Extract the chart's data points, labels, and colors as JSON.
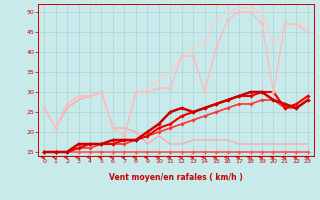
{
  "xlabel": "Vent moyen/en rafales ( km/h )",
  "xlim": [
    -0.5,
    23.5
  ],
  "ylim": [
    14,
    52
  ],
  "yticks": [
    15,
    20,
    25,
    30,
    35,
    40,
    45,
    50
  ],
  "xticks": [
    0,
    1,
    2,
    3,
    4,
    5,
    6,
    7,
    8,
    9,
    10,
    11,
    12,
    13,
    14,
    15,
    16,
    17,
    18,
    19,
    20,
    21,
    22,
    23
  ],
  "bg_color": "#c8eaea",
  "grid_color": "#aad4d4",
  "series": [
    {
      "x": [
        0,
        1,
        2,
        3,
        4,
        5,
        6,
        7,
        8,
        9,
        10,
        11,
        12,
        13,
        14,
        15,
        16,
        17,
        18,
        19,
        20,
        21,
        22,
        23
      ],
      "y": [
        15,
        15,
        15,
        15,
        15,
        15,
        15,
        15,
        15,
        15,
        15,
        15,
        15,
        15,
        15,
        15,
        15,
        15,
        15,
        15,
        15,
        15,
        15,
        15
      ],
      "color": "#ff5555",
      "lw": 1.2,
      "marker": "D",
      "ms": 1.8
    },
    {
      "x": [
        0,
        1,
        2,
        3,
        4,
        5,
        6,
        7,
        8,
        9,
        10,
        11,
        12,
        13,
        14,
        15,
        16,
        17,
        18,
        19,
        20,
        21,
        22,
        23
      ],
      "y": [
        15,
        15,
        15,
        16,
        16,
        17,
        17,
        17,
        18,
        19,
        20,
        21,
        22,
        23,
        24,
        25,
        26,
        27,
        27,
        28,
        28,
        26,
        26,
        28
      ],
      "color": "#ff3333",
      "lw": 1.2,
      "marker": "D",
      "ms": 1.8
    },
    {
      "x": [
        0,
        1,
        2,
        3,
        4,
        5,
        6,
        7,
        8,
        9,
        10,
        11,
        12,
        13,
        14,
        15,
        16,
        17,
        18,
        19,
        20,
        21,
        22,
        23
      ],
      "y": [
        15,
        15,
        15,
        16,
        17,
        17,
        17,
        18,
        18,
        19,
        21,
        22,
        24,
        25,
        26,
        27,
        28,
        29,
        29,
        30,
        30,
        26,
        27,
        29
      ],
      "color": "#ee0000",
      "lw": 1.5,
      "marker": "D",
      "ms": 1.8
    },
    {
      "x": [
        0,
        1,
        2,
        3,
        4,
        5,
        6,
        7,
        8,
        9,
        10,
        11,
        12,
        13,
        14,
        15,
        16,
        17,
        18,
        19,
        20,
        21,
        22,
        23
      ],
      "y": [
        15,
        15,
        15,
        17,
        17,
        17,
        18,
        18,
        18,
        20,
        22,
        25,
        26,
        25,
        26,
        27,
        28,
        29,
        30,
        30,
        28,
        27,
        26,
        28
      ],
      "color": "#cc0000",
      "lw": 1.8,
      "marker": "D",
      "ms": 1.8
    },
    {
      "x": [
        0,
        1,
        2,
        3,
        4,
        5,
        6,
        7,
        8,
        9,
        10,
        11,
        12,
        13,
        14,
        15,
        16,
        17,
        18,
        19,
        20,
        21,
        22,
        23
      ],
      "y": [
        26,
        21,
        26,
        28,
        29,
        30,
        21,
        21,
        20,
        17,
        19,
        17,
        17,
        18,
        18,
        18,
        18,
        17,
        17,
        17,
        17,
        17,
        17,
        17
      ],
      "color": "#ffaaaa",
      "lw": 1.0,
      "marker": null,
      "ms": 0
    },
    {
      "x": [
        0,
        1,
        2,
        3,
        4,
        5,
        6,
        7,
        8,
        9,
        10,
        11,
        12,
        13,
        14,
        15,
        16,
        17,
        18,
        19,
        20,
        21,
        22,
        23
      ],
      "y": [
        26,
        21,
        27,
        29,
        29,
        30,
        21,
        19,
        30,
        30,
        31,
        31,
        39,
        39,
        30,
        41,
        48,
        50,
        50,
        47,
        30,
        47,
        47,
        45
      ],
      "color": "#ffbbbb",
      "lw": 1.0,
      "marker": "D",
      "ms": 1.8
    },
    {
      "x": [
        0,
        1,
        2,
        3,
        4,
        5,
        6,
        7,
        8,
        9,
        10,
        11,
        12,
        13,
        14,
        15,
        16,
        17,
        18,
        19,
        20,
        21,
        22,
        23
      ],
      "y": [
        26,
        21,
        27,
        29,
        29,
        30,
        21,
        19,
        30,
        31,
        33,
        35,
        39,
        41,
        42,
        48,
        50,
        51,
        51,
        50,
        42,
        47,
        47,
        46
      ],
      "color": "#ffcccc",
      "lw": 1.0,
      "marker": null,
      "ms": 0
    }
  ]
}
